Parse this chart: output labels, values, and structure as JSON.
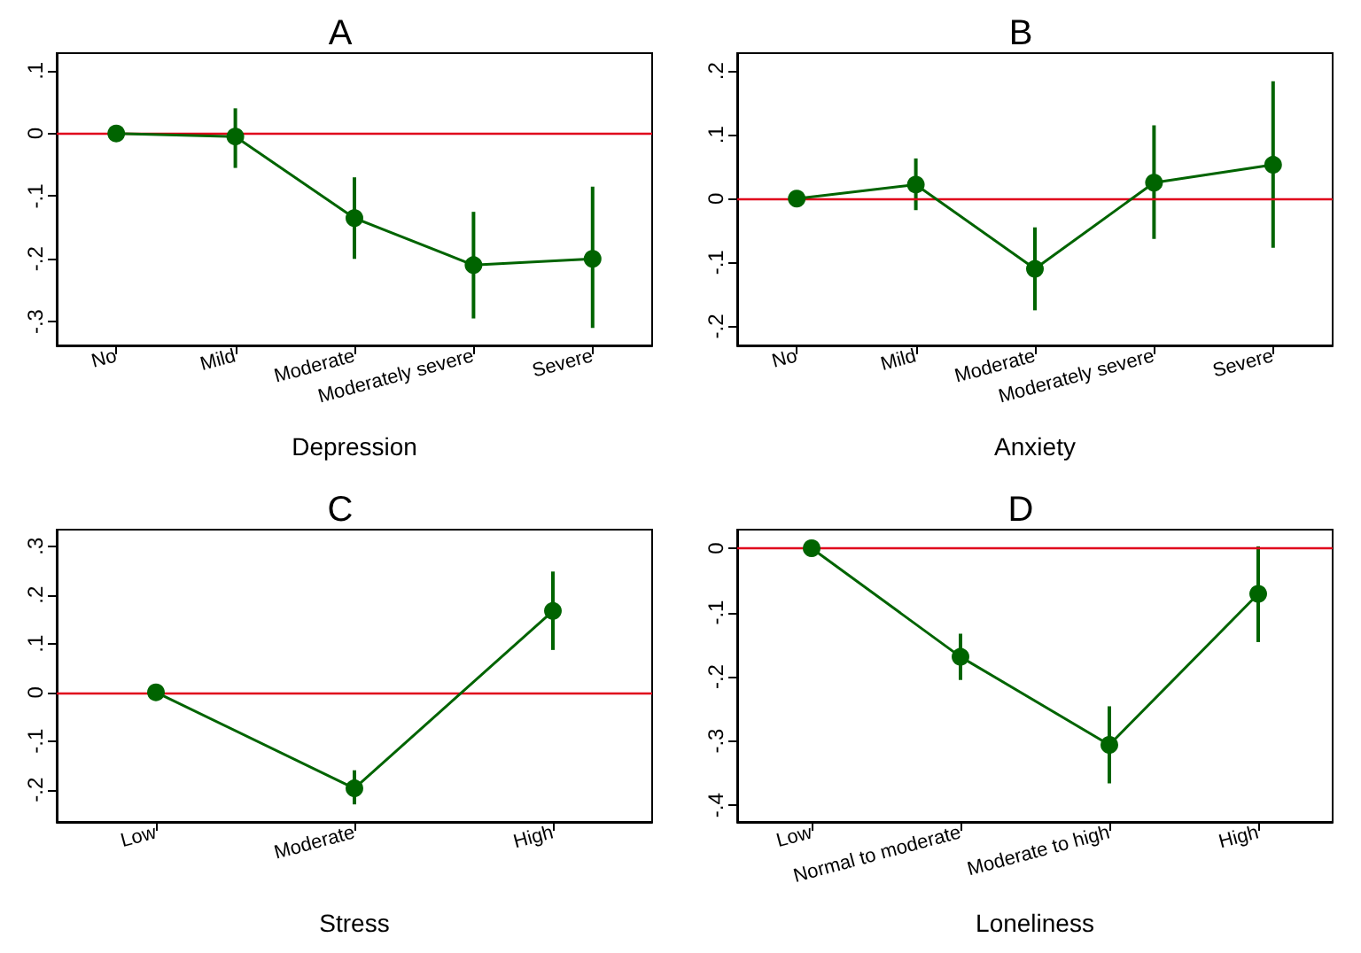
{
  "chart_data": [
    {
      "type": "line",
      "title": "A",
      "xlabel": "Depression",
      "categories": [
        "No",
        "Mild",
        "Moderate",
        "Moderately severe",
        "Severe"
      ],
      "series": [
        {
          "color": "#006400",
          "values": [
            0,
            -0.005,
            -0.135,
            -0.21,
            -0.2
          ],
          "errors": [
            null,
            [
              -0.055,
              0.04
            ],
            [
              -0.2,
              -0.07
            ],
            [
              -0.295,
              -0.125
            ],
            [
              -0.31,
              -0.085
            ]
          ]
        }
      ],
      "ylim": [
        -0.338,
        0.128
      ],
      "yticks": [
        {
          "value": -0.3,
          "label": "-.3"
        },
        {
          "value": -0.2,
          "label": "-.2"
        },
        {
          "value": -0.1,
          "label": "-.1"
        },
        {
          "value": 0,
          "label": "0"
        },
        {
          "value": 0.1,
          "label": ".1"
        }
      ],
      "ref_lines": [
        {
          "axis": "y",
          "value": 0,
          "label": null,
          "color": "#e0001b"
        }
      ],
      "grid": false,
      "marker": "circle",
      "line_style": "solid"
    },
    {
      "type": "line",
      "title": "B",
      "xlabel": "Anxiety",
      "categories": [
        "No",
        "Mild",
        "Moderate",
        "Moderately severe",
        "Severe"
      ],
      "series": [
        {
          "color": "#006400",
          "values": [
            0,
            0.022,
            -0.11,
            0.025,
            0.053
          ],
          "errors": [
            null,
            [
              -0.018,
              0.063
            ],
            [
              -0.175,
              -0.045
            ],
            [
              -0.063,
              0.115
            ],
            [
              -0.077,
              0.184
            ]
          ]
        }
      ],
      "ylim": [
        -0.23,
        0.228
      ],
      "yticks": [
        {
          "value": -0.2,
          "label": "-.2"
        },
        {
          "value": -0.1,
          "label": "-.1"
        },
        {
          "value": 0,
          "label": "0"
        },
        {
          "value": 0.1,
          "label": ".1"
        },
        {
          "value": 0.2,
          "label": ".2"
        }
      ],
      "ref_lines": [
        {
          "axis": "y",
          "value": 0,
          "label": null,
          "color": "#e0001b"
        }
      ],
      "grid": false,
      "marker": "circle",
      "line_style": "solid"
    },
    {
      "type": "line",
      "title": "C",
      "xlabel": "Stress",
      "categories": [
        "Low",
        "Moderate",
        "High"
      ],
      "series": [
        {
          "color": "#006400",
          "values": [
            0,
            -0.197,
            0.167
          ],
          "errors": [
            null,
            [
              -0.23,
              -0.16
            ],
            [
              0.087,
              0.248
            ]
          ]
        }
      ],
      "ylim": [
        -0.266,
        0.334
      ],
      "yticks": [
        {
          "value": -0.2,
          "label": "-.2"
        },
        {
          "value": -0.1,
          "label": "-.1"
        },
        {
          "value": 0,
          "label": "0"
        },
        {
          "value": 0.1,
          "label": ".1"
        },
        {
          "value": 0.2,
          "label": ".2"
        },
        {
          "value": 0.3,
          "label": ".3"
        }
      ],
      "ref_lines": [
        {
          "axis": "y",
          "value": 0,
          "label": null,
          "color": "#e0001b"
        }
      ],
      "grid": false,
      "marker": "circle",
      "line_style": "solid"
    },
    {
      "type": "line",
      "title": "D",
      "xlabel": "Loneliness",
      "categories": [
        "Low",
        "Normal to moderate",
        "Moderate to high",
        "High"
      ],
      "series": [
        {
          "color": "#006400",
          "values": [
            0,
            -0.169,
            -0.306,
            -0.071
          ],
          "errors": [
            null,
            [
              -0.205,
              -0.133
            ],
            [
              -0.366,
              -0.246
            ],
            [
              -0.146,
              0.003
            ]
          ]
        }
      ],
      "ylim": [
        -0.426,
        0.029
      ],
      "yticks": [
        {
          "value": -0.4,
          "label": "-.4"
        },
        {
          "value": -0.3,
          "label": "-.3"
        },
        {
          "value": -0.2,
          "label": "-.2"
        },
        {
          "value": -0.1,
          "label": "-.1"
        },
        {
          "value": 0,
          "label": "0"
        }
      ],
      "ref_lines": [
        {
          "axis": "y",
          "value": 0,
          "label": null,
          "color": "#e0001b"
        }
      ],
      "grid": false,
      "marker": "circle",
      "line_style": "solid"
    }
  ]
}
